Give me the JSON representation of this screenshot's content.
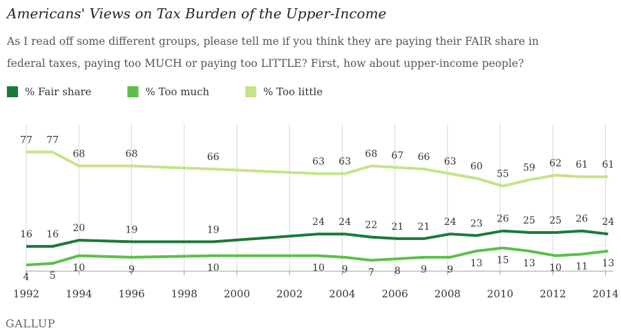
{
  "chart_data": {
    "type": "line",
    "title": "Americans' Views on Tax Burden of the Upper-Income",
    "subtitle": [
      "As I read off some different groups, please tell me if you think they are paying their FAIR share in",
      "federal taxes, paying too MUCH or paying too LITTLE? First, how about upper-income people?"
    ],
    "x": [
      1992,
      1993,
      1994,
      1996,
      1999.1,
      2003.1,
      2004.1,
      2005.1,
      2006.1,
      2007.1,
      2008.1,
      2009.1,
      2010.1,
      2011.1,
      2012.1,
      2013.1,
      2014.1
    ],
    "series": [
      {
        "name": "% Fair share",
        "color": "#1a7a3a",
        "values": [
          16,
          16,
          20,
          19,
          19,
          24,
          24,
          22,
          21,
          21,
          24,
          23,
          26,
          25,
          25,
          26,
          24
        ]
      },
      {
        "name": "% Too much",
        "color": "#5cbf4a",
        "values": [
          4,
          5,
          10,
          9,
          10,
          10,
          9,
          7,
          8,
          9,
          9,
          13,
          15,
          13,
          10,
          11,
          13
        ]
      },
      {
        "name": "% Too little",
        "color": "#c5e38a",
        "values": [
          77,
          77,
          68,
          68,
          66,
          63,
          63,
          68,
          67,
          66,
          63,
          60,
          55,
          59,
          62,
          61,
          61
        ]
      }
    ],
    "xlim": [
      1992,
      2014.3
    ],
    "xticks": [
      1992,
      1994,
      1996,
      1998,
      2000,
      2002,
      2004,
      2006,
      2008,
      2010,
      2012,
      2014
    ],
    "ylim": [
      0,
      95
    ],
    "grid": true,
    "source": "GALLUP"
  }
}
